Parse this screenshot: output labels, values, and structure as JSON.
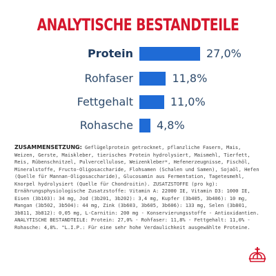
{
  "title": "ANALYTISCHE BESTANDTEILE",
  "chart_data": {
    "type": "bar",
    "orientation": "horizontal",
    "title": "ANALYTISCHE BESTANDTEILE",
    "categories": [
      "Protein",
      "Rohfaser",
      "Fettgehalt",
      "Rohasche"
    ],
    "values": [
      27.0,
      11.8,
      11.0,
      4.8
    ],
    "value_labels": [
      "27,0%",
      "11,8%",
      "11,0%",
      "4,8%"
    ],
    "unit": "%",
    "xlim": [
      0,
      30
    ],
    "grid": false,
    "legend": "none",
    "bar_color": "#1f6bd6"
  },
  "composition": {
    "heading": "ZUSAMMENSETZUNG:",
    "text": " Geflügelprotein getrocknet, pflanzliche Fasern, Mais, Weizen, Gerste, Maiskleber, tierisches Protein hydrolysiert, Maismehl, Tierfett, Reis, Rübenschnitzel, Pulvercellulose, Weizenkleber*, Hefenerzeugnisse, Fischöl, Mineralstoffe, Fructo-Oligosaccharide, Flohsamen (Schalen und Samen), Sojaöl, Hefen (Quelle für Mannan-Oligosaccharide), Glucosamin aus Fermentation, Tagetesmehl, Knorpel hydrolysiert (Quelle für Chondroitin). ZUSATZSTOFFE (pro kg): Ernährungsphysiologische Zusatzstoffe: Vitamin A: 22000 IE, Vitamin D3: 1000 IE, Eisen (3b103): 34 mg, Jod (3b201, 3b202): 3,4 mg, Kupfer (3b405, 3b406): 10 mg, Mangan (3b502, 3b504): 44 mg, Zink (3b603, 3b605, 3b606): 133 mg, Selen (3b801, 3b811, 3b812): 0,05 mg, L-Carnitin: 200 mg - Konservierungsstoffe - Antioxidantien. ANALYTISCHE BESTANDTEILE: Protein: 27,0% - Rohfaser: 11,8% - Fettgehalt: 11,0% - Rohasche: 4,8%. \"L.I.P.: Für eine sehr hohe Verdaulichkeit ausgewählte Proteine."
  },
  "brand_logo": {
    "icon": "crown-icon",
    "color": "#d4152b"
  },
  "colors": {
    "title": "#d4152b",
    "bar": "#1f6bd6",
    "label": "#2d4a6b",
    "text": "#444444"
  }
}
